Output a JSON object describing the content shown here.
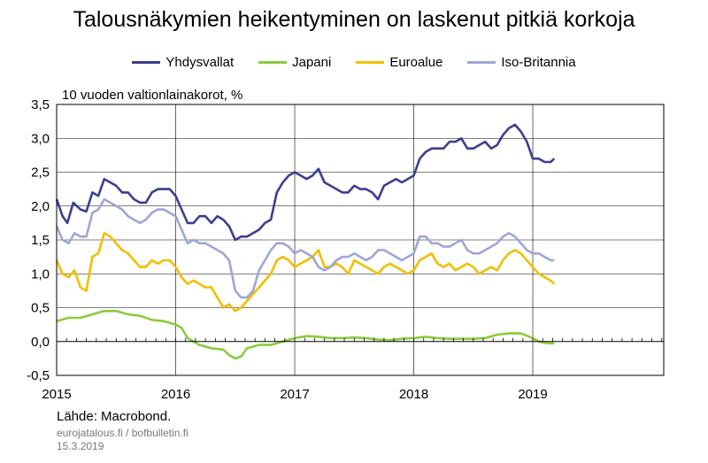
{
  "chart_data": {
    "type": "line",
    "title": "Talousnäkymien heikentyminen on laskenut pitkiä korkoja",
    "subtitle": "10 vuoden valtionlainakorot, %",
    "ylim": [
      -0.5,
      3.5
    ],
    "yticks": [
      "3,5",
      "3,0",
      "2,5",
      "2,0",
      "1,5",
      "1,0",
      "0,5",
      "0,0",
      "-0,5"
    ],
    "yticks_values": [
      3.5,
      3.0,
      2.5,
      2.0,
      1.5,
      1.0,
      0.5,
      0.0,
      -0.5
    ],
    "xlim": [
      2015,
      2020.1
    ],
    "xticks": [
      "2015",
      "2016",
      "2017",
      "2018",
      "2019"
    ],
    "xticks_values": [
      2015,
      2016,
      2017,
      2018,
      2019
    ],
    "grid": true,
    "legend_position": "top",
    "series": [
      {
        "name": "Yhdysvallat",
        "color": "#3b3f8f",
        "x": [
          2015.0,
          2015.05,
          2015.09,
          2015.14,
          2015.2,
          2015.25,
          2015.3,
          2015.35,
          2015.4,
          2015.45,
          2015.5,
          2015.55,
          2015.6,
          2015.65,
          2015.7,
          2015.75,
          2015.8,
          2015.85,
          2015.9,
          2015.95,
          2016.0,
          2016.05,
          2016.1,
          2016.15,
          2016.2,
          2016.25,
          2016.3,
          2016.35,
          2016.4,
          2016.45,
          2016.5,
          2016.55,
          2016.6,
          2016.65,
          2016.7,
          2016.75,
          2016.8,
          2016.85,
          2016.9,
          2016.95,
          2017.0,
          2017.05,
          2017.1,
          2017.15,
          2017.2,
          2017.25,
          2017.3,
          2017.35,
          2017.4,
          2017.45,
          2017.5,
          2017.55,
          2017.6,
          2017.65,
          2017.7,
          2017.75,
          2017.8,
          2017.85,
          2017.9,
          2017.95,
          2018.0,
          2018.05,
          2018.1,
          2018.15,
          2018.2,
          2018.25,
          2018.3,
          2018.35,
          2018.4,
          2018.45,
          2018.5,
          2018.55,
          2018.6,
          2018.65,
          2018.7,
          2018.75,
          2018.8,
          2018.85,
          2018.9,
          2018.95,
          2019.0,
          2019.05,
          2019.1,
          2019.15,
          2019.18
        ],
        "values": [
          2.1,
          1.85,
          1.75,
          2.05,
          1.95,
          1.92,
          2.2,
          2.15,
          2.4,
          2.35,
          2.3,
          2.2,
          2.2,
          2.1,
          2.05,
          2.05,
          2.2,
          2.25,
          2.25,
          2.25,
          2.15,
          1.95,
          1.75,
          1.75,
          1.85,
          1.85,
          1.75,
          1.85,
          1.8,
          1.7,
          1.5,
          1.55,
          1.55,
          1.6,
          1.65,
          1.75,
          1.8,
          2.2,
          2.35,
          2.45,
          2.5,
          2.45,
          2.4,
          2.45,
          2.55,
          2.35,
          2.3,
          2.25,
          2.2,
          2.2,
          2.3,
          2.25,
          2.25,
          2.2,
          2.1,
          2.3,
          2.35,
          2.4,
          2.35,
          2.4,
          2.45,
          2.7,
          2.8,
          2.85,
          2.85,
          2.85,
          2.95,
          2.95,
          3.0,
          2.85,
          2.85,
          2.9,
          2.95,
          2.85,
          2.9,
          3.05,
          3.15,
          3.2,
          3.1,
          2.95,
          2.7,
          2.7,
          2.65,
          2.65,
          2.7
        ]
      },
      {
        "name": "Japani",
        "color": "#8ccb3b",
        "x": [
          2015.0,
          2015.1,
          2015.2,
          2015.3,
          2015.4,
          2015.5,
          2015.6,
          2015.7,
          2015.8,
          2015.9,
          2016.0,
          2016.05,
          2016.1,
          2016.2,
          2016.3,
          2016.4,
          2016.45,
          2016.5,
          2016.55,
          2016.6,
          2016.7,
          2016.8,
          2016.9,
          2017.0,
          2017.1,
          2017.2,
          2017.3,
          2017.4,
          2017.5,
          2017.6,
          2017.7,
          2017.8,
          2017.9,
          2018.0,
          2018.1,
          2018.2,
          2018.3,
          2018.4,
          2018.5,
          2018.6,
          2018.7,
          2018.8,
          2018.9,
          2019.0,
          2019.05,
          2019.1,
          2019.18
        ],
        "values": [
          0.3,
          0.35,
          0.35,
          0.4,
          0.45,
          0.45,
          0.4,
          0.38,
          0.32,
          0.3,
          0.25,
          0.2,
          0.05,
          -0.05,
          -0.1,
          -0.12,
          -0.2,
          -0.25,
          -0.22,
          -0.1,
          -0.05,
          -0.05,
          0.0,
          0.05,
          0.08,
          0.07,
          0.05,
          0.05,
          0.06,
          0.05,
          0.03,
          0.02,
          0.04,
          0.05,
          0.07,
          0.05,
          0.04,
          0.04,
          0.04,
          0.05,
          0.1,
          0.12,
          0.12,
          0.05,
          0.0,
          -0.02,
          -0.03
        ]
      },
      {
        "name": "Euroalue",
        "color": "#f2be00",
        "x": [
          2015.0,
          2015.05,
          2015.1,
          2015.15,
          2015.2,
          2015.25,
          2015.3,
          2015.35,
          2015.4,
          2015.45,
          2015.5,
          2015.55,
          2015.6,
          2015.65,
          2015.7,
          2015.75,
          2015.8,
          2015.85,
          2015.9,
          2015.95,
          2016.0,
          2016.05,
          2016.1,
          2016.15,
          2016.2,
          2016.25,
          2016.3,
          2016.35,
          2016.4,
          2016.45,
          2016.5,
          2016.55,
          2016.6,
          2016.65,
          2016.7,
          2016.75,
          2016.8,
          2016.85,
          2016.9,
          2016.95,
          2017.0,
          2017.05,
          2017.1,
          2017.15,
          2017.2,
          2017.25,
          2017.3,
          2017.35,
          2017.4,
          2017.45,
          2017.5,
          2017.55,
          2017.6,
          2017.65,
          2017.7,
          2017.75,
          2017.8,
          2017.85,
          2017.9,
          2017.95,
          2018.0,
          2018.05,
          2018.1,
          2018.15,
          2018.2,
          2018.25,
          2018.3,
          2018.35,
          2018.4,
          2018.45,
          2018.5,
          2018.55,
          2018.6,
          2018.65,
          2018.7,
          2018.75,
          2018.8,
          2018.85,
          2018.9,
          2018.95,
          2019.0,
          2019.05,
          2019.1,
          2019.15,
          2019.18
        ],
        "values": [
          1.2,
          1.0,
          0.95,
          1.05,
          0.8,
          0.75,
          1.25,
          1.3,
          1.6,
          1.55,
          1.45,
          1.35,
          1.3,
          1.2,
          1.1,
          1.1,
          1.2,
          1.15,
          1.2,
          1.2,
          1.1,
          0.95,
          0.85,
          0.9,
          0.85,
          0.8,
          0.8,
          0.65,
          0.5,
          0.55,
          0.45,
          0.5,
          0.6,
          0.7,
          0.8,
          0.9,
          1.0,
          1.2,
          1.25,
          1.2,
          1.1,
          1.15,
          1.2,
          1.25,
          1.35,
          1.1,
          1.1,
          1.15,
          1.1,
          1.0,
          1.2,
          1.15,
          1.1,
          1.05,
          1.0,
          1.1,
          1.15,
          1.1,
          1.05,
          1.0,
          1.05,
          1.2,
          1.25,
          1.3,
          1.15,
          1.1,
          1.15,
          1.05,
          1.1,
          1.15,
          1.1,
          1.0,
          1.05,
          1.1,
          1.05,
          1.2,
          1.3,
          1.35,
          1.3,
          1.2,
          1.1,
          1.0,
          0.95,
          0.9,
          0.85
        ]
      },
      {
        "name": "Iso-Britannia",
        "color": "#9ea6d6",
        "x": [
          2015.0,
          2015.05,
          2015.1,
          2015.15,
          2015.2,
          2015.25,
          2015.3,
          2015.35,
          2015.4,
          2015.45,
          2015.5,
          2015.55,
          2015.6,
          2015.65,
          2015.7,
          2015.75,
          2015.8,
          2015.85,
          2015.9,
          2015.95,
          2016.0,
          2016.05,
          2016.1,
          2016.15,
          2016.2,
          2016.25,
          2016.3,
          2016.35,
          2016.4,
          2016.45,
          2016.5,
          2016.55,
          2016.6,
          2016.65,
          2016.7,
          2016.75,
          2016.8,
          2016.85,
          2016.9,
          2016.95,
          2017.0,
          2017.05,
          2017.1,
          2017.15,
          2017.2,
          2017.25,
          2017.3,
          2017.35,
          2017.4,
          2017.45,
          2017.5,
          2017.55,
          2017.6,
          2017.65,
          2017.7,
          2017.75,
          2017.8,
          2017.85,
          2017.9,
          2017.95,
          2018.0,
          2018.05,
          2018.1,
          2018.15,
          2018.2,
          2018.25,
          2018.3,
          2018.35,
          2018.4,
          2018.45,
          2018.5,
          2018.55,
          2018.6,
          2018.65,
          2018.7,
          2018.75,
          2018.8,
          2018.85,
          2018.9,
          2018.95,
          2019.0,
          2019.05,
          2019.1,
          2019.15,
          2019.18
        ],
        "values": [
          1.7,
          1.5,
          1.45,
          1.6,
          1.55,
          1.55,
          1.9,
          1.95,
          2.1,
          2.05,
          2.0,
          1.95,
          1.85,
          1.8,
          1.75,
          1.8,
          1.9,
          1.95,
          1.95,
          1.9,
          1.85,
          1.65,
          1.45,
          1.5,
          1.45,
          1.45,
          1.4,
          1.35,
          1.3,
          1.2,
          0.75,
          0.65,
          0.65,
          0.75,
          1.05,
          1.2,
          1.35,
          1.45,
          1.45,
          1.4,
          1.3,
          1.35,
          1.3,
          1.25,
          1.1,
          1.05,
          1.1,
          1.2,
          1.25,
          1.25,
          1.3,
          1.25,
          1.2,
          1.25,
          1.35,
          1.35,
          1.3,
          1.25,
          1.2,
          1.25,
          1.3,
          1.55,
          1.55,
          1.45,
          1.45,
          1.4,
          1.4,
          1.45,
          1.5,
          1.35,
          1.3,
          1.3,
          1.35,
          1.4,
          1.45,
          1.55,
          1.6,
          1.55,
          1.45,
          1.35,
          1.3,
          1.3,
          1.25,
          1.2,
          1.2
        ]
      }
    ]
  },
  "footer": {
    "source": "Lähde: Macrobond.",
    "site": "eurojatalous.fi / bofbulletin.fi",
    "date": "15.3.2019"
  }
}
